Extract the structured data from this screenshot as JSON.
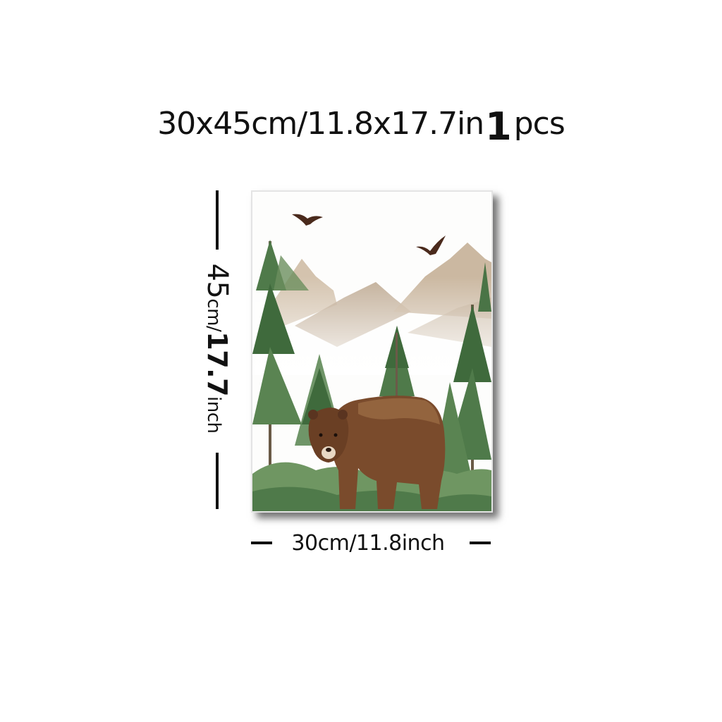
{
  "header": {
    "size_text": "30x45cm/11.8x17.7in",
    "quantity": "1",
    "unit": "pcs"
  },
  "height_label": {
    "value": "45",
    "unit": "cm/",
    "inch_value": "17.7",
    "inch_unit": "inch"
  },
  "width_label": {
    "text": "30cm/11.8inch"
  },
  "colors": {
    "text": "#111111",
    "tree_dark": "#3f6a3c",
    "tree_light": "#7a9a6c",
    "mountain": "#b8a48a",
    "bear": "#7a4b2c"
  }
}
